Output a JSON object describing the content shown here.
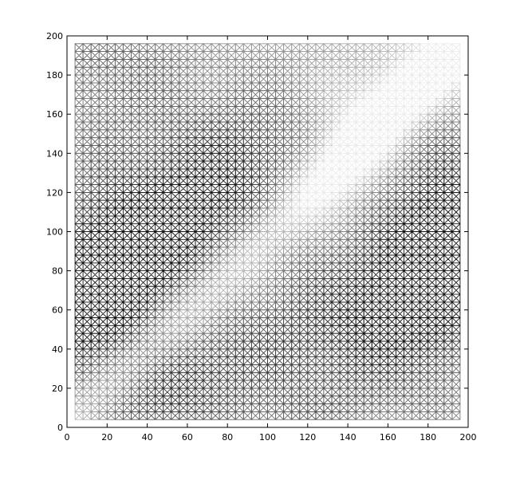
{
  "chart_data": {
    "type": "heatmap",
    "title": "",
    "xlabel": "",
    "ylabel": "",
    "xlim": [
      0,
      200
    ],
    "ylim": [
      0,
      200
    ],
    "x_ticks": [
      "0",
      "20",
      "40",
      "60",
      "80",
      "100",
      "120",
      "140",
      "160",
      "180",
      "200"
    ],
    "y_ticks": [
      "0",
      "20",
      "40",
      "60",
      "80",
      "100",
      "120",
      "140",
      "160",
      "180",
      "200"
    ],
    "grid": false,
    "grid_resolution": 4,
    "data_extent": [
      4,
      196
    ],
    "mark_style": "triangulated wireframe mesh, stroke shade encodes value",
    "colormap": "gray (dark = high, light = low)",
    "x_tick_values": [
      0,
      20,
      40,
      60,
      80,
      100,
      120,
      140,
      160,
      180,
      200
    ],
    "y_tick_values": [
      0,
      20,
      40,
      60,
      80,
      100,
      120,
      140,
      160,
      180,
      200
    ],
    "structure": {
      "diagonal_band": "light band along y = x",
      "upper_left_region": "dark blob centered near (45, 85), darker lower-left",
      "upper_right_region": "mostly light gray, slightly darker toward top-left corner",
      "lower_right_region": "dark blob centered near (165, 60)",
      "lower_middle_region": "light gray between x = 70 and x = 135 below y = 60"
    }
  }
}
